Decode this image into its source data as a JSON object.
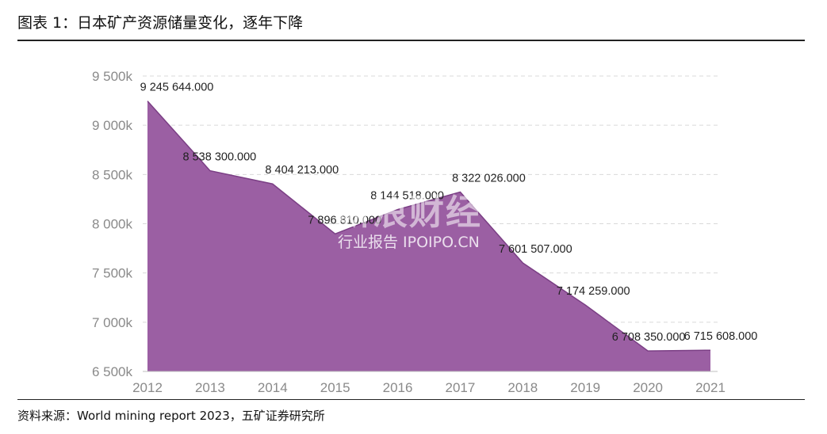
{
  "figure_title": "图表 1：日本矿产资源储量变化，逐年下降",
  "source": "资料来源：World  mining report 2023，五矿证券研究所",
  "watermark": {
    "main": "新浪财经",
    "sub": "行业报告 IPOIPO.CN"
  },
  "colors": {
    "area": "#9b5fa3",
    "line": "#7b3f85",
    "grid": "#d9d9d9",
    "rule": "#222222"
  },
  "chart_data": {
    "type": "area",
    "title": "",
    "xlabel": "",
    "ylabel": "",
    "x": [
      "2012",
      "2013",
      "2014",
      "2015",
      "2016",
      "2017",
      "2018",
      "2019",
      "2020",
      "2021"
    ],
    "values": [
      9245644,
      8538300,
      8404213,
      7896810,
      8144518,
      8322026,
      7601507,
      7174259,
      6708350,
      6715608
    ],
    "data_labels": [
      "9 245 644.000",
      "8 538 300.000",
      "8 404 213.000",
      "7 896 810.000",
      "8 144 518.000",
      "8 322 026.000",
      "7 601 507.000",
      "7 174 259.000",
      "6 708 350.000",
      "6 715 608.000"
    ],
    "ylim": [
      6500000,
      9500000
    ],
    "yticks": [
      6500000,
      7000000,
      7500000,
      8000000,
      8500000,
      9000000,
      9500000
    ],
    "ytick_labels": [
      "6 500k",
      "7 000k",
      "7 500k",
      "8 000k",
      "8 500k",
      "9 000k",
      "9 500k"
    ],
    "grid": true,
    "legend": "none"
  }
}
